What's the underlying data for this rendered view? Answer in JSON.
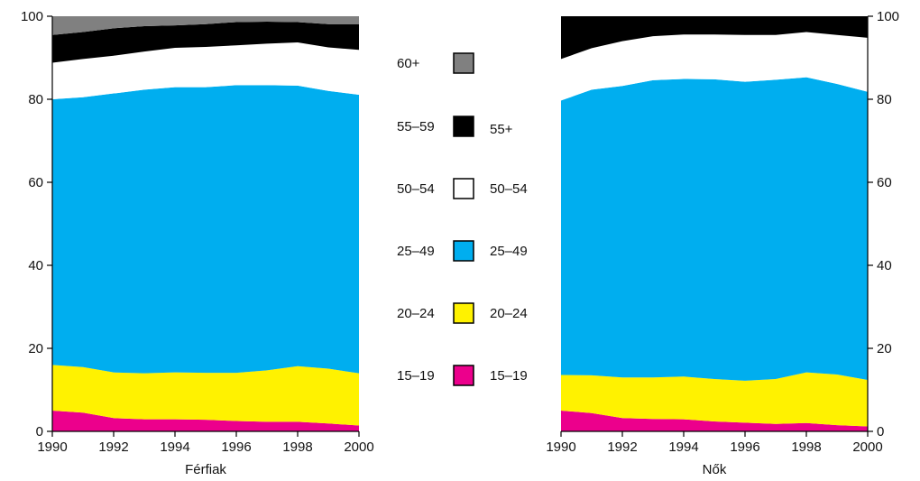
{
  "chart_data": {
    "type": "area",
    "stacked": true,
    "x": [
      1990,
      1991,
      1992,
      1993,
      1994,
      1995,
      1996,
      1997,
      1998,
      1999,
      2000
    ],
    "xticks": [
      1990,
      1992,
      1994,
      1996,
      1998,
      2000
    ],
    "yticks": [
      0,
      20,
      40,
      60,
      80,
      100
    ],
    "ylim": [
      0,
      100
    ],
    "xlim": [
      1990,
      2000
    ],
    "grid": false,
    "colors": {
      "15-19": "#ec008c",
      "20-24": "#fff200",
      "25-49": "#00aeef",
      "50-54": "#ffffff",
      "55-59": "#000000",
      "60+": "#808080"
    },
    "panels": [
      {
        "title": "Férfiak",
        "y_axis_side": "left",
        "series": [
          {
            "key": "15-19",
            "values": [
              5.0,
              4.5,
              3.2,
              2.9,
              2.9,
              2.8,
              2.5,
              2.3,
              2.3,
              1.9,
              1.4
            ]
          },
          {
            "key": "20-24",
            "values": [
              11.0,
              11.0,
              11.0,
              11.1,
              11.3,
              11.3,
              11.6,
              12.4,
              13.4,
              13.2,
              12.6
            ]
          },
          {
            "key": "25-49",
            "values": [
              64.0,
              65.0,
              67.2,
              68.3,
              68.7,
              68.8,
              69.3,
              68.7,
              67.6,
              66.9,
              67.1
            ]
          },
          {
            "key": "50-54",
            "values": [
              8.8,
              9.2,
              9.1,
              9.2,
              9.5,
              9.7,
              9.6,
              10.0,
              10.4,
              10.5,
              10.8
            ]
          },
          {
            "key": "55-59",
            "values": [
              6.7,
              6.5,
              6.6,
              6.1,
              5.4,
              5.5,
              5.6,
              5.3,
              4.9,
              5.6,
              6.2
            ]
          },
          {
            "key": "60+",
            "values": [
              4.5,
              3.8,
              2.9,
              2.4,
              2.2,
              1.9,
              1.4,
              1.3,
              1.4,
              1.9,
              1.9
            ]
          }
        ]
      },
      {
        "title": "Nők",
        "y_axis_side": "right",
        "series": [
          {
            "key": "15-19",
            "values": [
              5.0,
              4.4,
              3.2,
              3.0,
              2.9,
              2.4,
              2.1,
              1.8,
              2.0,
              1.5,
              1.2
            ]
          },
          {
            "key": "20-24",
            "values": [
              8.6,
              9.1,
              9.8,
              10.0,
              10.3,
              10.2,
              10.1,
              10.8,
              12.2,
              12.2,
              11.2
            ]
          },
          {
            "key": "25-49",
            "values": [
              66.1,
              68.8,
              70.2,
              71.6,
              71.7,
              72.2,
              72.0,
              72.1,
              71.1,
              70.0,
              69.4
            ]
          },
          {
            "key": "50-54",
            "values": [
              10.0,
              10.0,
              10.8,
              10.6,
              10.7,
              10.8,
              11.3,
              10.8,
              10.9,
              11.8,
              13.0
            ]
          },
          {
            "key": "55-59",
            "values": [
              10.3,
              7.7,
              6.0,
              4.8,
              4.4,
              4.4,
              4.5,
              4.5,
              3.8,
              4.5,
              5.2
            ]
          }
        ]
      }
    ],
    "legend": {
      "placement": "center",
      "rows": [
        {
          "left_label": "60+",
          "right_label": "",
          "key": "60+",
          "right_key": ""
        },
        {
          "left_label": "55–59",
          "right_label": "55+",
          "key": "55-59",
          "right_key": "55-59"
        },
        {
          "left_label": "50–54",
          "right_label": "50–54",
          "key": "50-54",
          "right_key": "50-54"
        },
        {
          "left_label": "25–49",
          "right_label": "25–49",
          "key": "25-49",
          "right_key": "25-49"
        },
        {
          "left_label": "20–24",
          "right_label": "20–24",
          "key": "20-24",
          "right_key": "20-24"
        },
        {
          "left_label": "15–19",
          "right_label": "15–19",
          "key": "15-19",
          "right_key": "15-19"
        }
      ]
    }
  }
}
